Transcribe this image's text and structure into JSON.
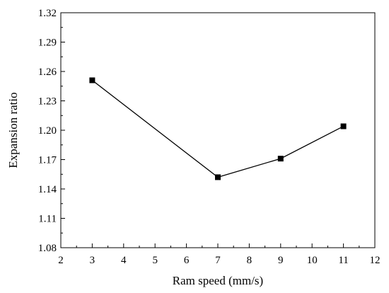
{
  "chart_data": {
    "type": "line",
    "title": "",
    "xlabel": "Ram speed (mm/s)",
    "ylabel": "Expansion ratio",
    "xlim": [
      2,
      12
    ],
    "ylim": [
      1.08,
      1.32
    ],
    "x_ticks": [
      2,
      3,
      4,
      5,
      6,
      7,
      8,
      9,
      10,
      11,
      12
    ],
    "x_tick_labels": [
      "2",
      "3",
      "4",
      "5",
      "6",
      "7",
      "8",
      "9",
      "10",
      "11",
      "12"
    ],
    "y_ticks": [
      1.08,
      1.11,
      1.14,
      1.17,
      1.2,
      1.23,
      1.26,
      1.29,
      1.32
    ],
    "y_tick_labels": [
      "1.08",
      "1.11",
      "1.14",
      "1.17",
      "1.20",
      "1.23",
      "1.26",
      "1.29",
      "1.32"
    ],
    "grid": false,
    "legend": "none",
    "marker": "square",
    "line_color": "#000000",
    "series": [
      {
        "x": [
          3,
          7,
          9,
          11
        ],
        "y": [
          1.251,
          1.152,
          1.171,
          1.204
        ]
      }
    ]
  }
}
